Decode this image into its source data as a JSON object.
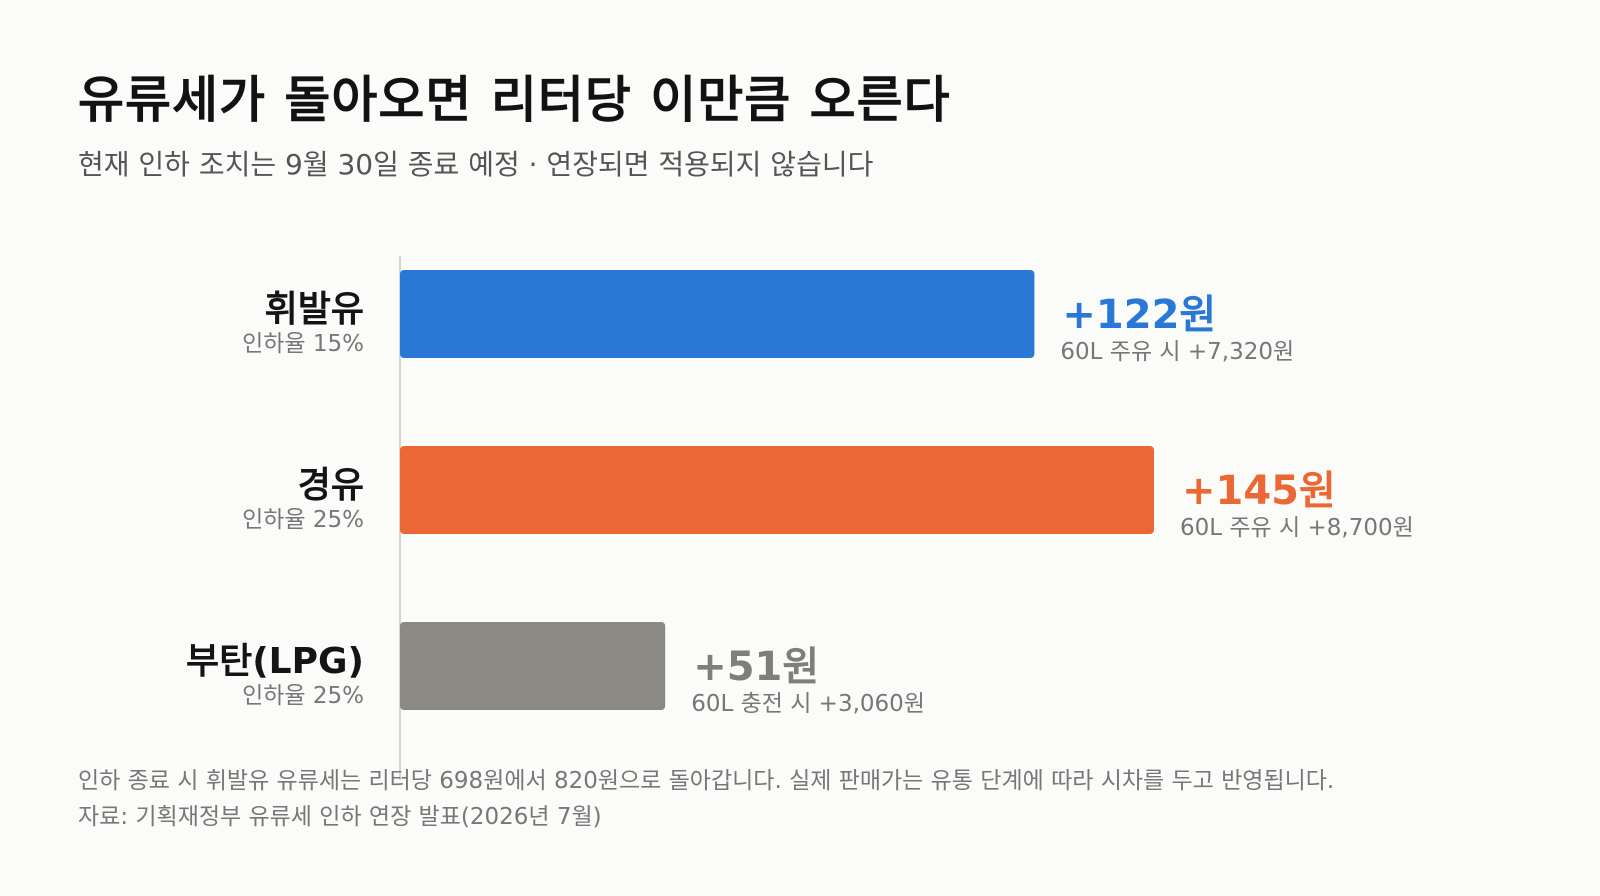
{
  "title": "유류세가 돌아오면 리터당 이만큼 오른다",
  "subtitle": "현재 인하 조치는 9월 30일 종료 예정 · 연장되면 적용되지 않습니다",
  "chart_data": {
    "type": "bar",
    "orientation": "horizontal",
    "categories": [
      "휘발유",
      "경유",
      "부탄(LPG)"
    ],
    "values": [
      122,
      145,
      51
    ],
    "value_labels": [
      "+122원",
      "+145원",
      "+51원"
    ],
    "category_notes": [
      "인하율 15%",
      "인하율 25%",
      "인하율 25%"
    ],
    "value_notes": [
      "60L 주유 시 +7,320원",
      "60L 주유 시 +8,700원",
      "60L 충전 시 +3,060원"
    ],
    "colors": [
      "#2a78d6",
      "#eb6834",
      "#8a8983"
    ],
    "grid": false,
    "legend": "none"
  },
  "footnotes": {
    "line1": "인하 종료 시 휘발유 유류세는 리터당 698원에서 820원으로 돌아갑니다. 실제 판매가는 유통 단계에 따라 시차를 두고 반영됩니다.",
    "line2": "자료: 기획재정부 유류세 인하 연장 발표(2026년 7월)"
  }
}
